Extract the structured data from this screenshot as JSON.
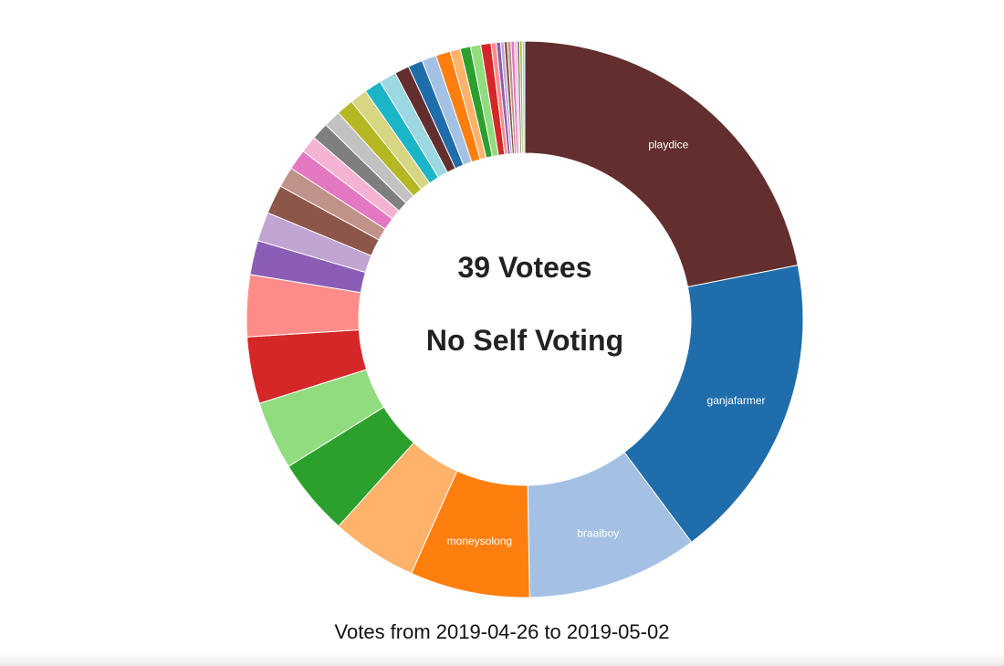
{
  "chart_data": {
    "type": "pie",
    "donut": true,
    "center_text": [
      "39 Votees",
      "No Self Voting"
    ],
    "caption": "Votes from 2019-04-26 to 2019-05-02",
    "slices": [
      {
        "label": "playdice",
        "value": 22.0,
        "color": "#632f2e"
      },
      {
        "label": "ganjafarmer",
        "value": 18.0,
        "color": "#1f6dab"
      },
      {
        "label": "braaiboy",
        "value": 10.0,
        "color": "#a4c1e4"
      },
      {
        "label": "moneysolong",
        "value": 7.0,
        "color": "#ff7f0e"
      },
      {
        "label": "",
        "value": 5.0,
        "color": "#ffb26a"
      },
      {
        "label": "",
        "value": 4.5,
        "color": "#2ca02c"
      },
      {
        "label": "",
        "value": 4.0,
        "color": "#90dc7e"
      },
      {
        "label": "",
        "value": 3.9,
        "color": "#d62728"
      },
      {
        "label": "",
        "value": 3.6,
        "color": "#ff8c88"
      },
      {
        "label": "",
        "value": 2.0,
        "color": "#8b5db7"
      },
      {
        "label": "",
        "value": 1.7,
        "color": "#c0a5d2"
      },
      {
        "label": "",
        "value": 1.7,
        "color": "#8c564b"
      },
      {
        "label": "",
        "value": 1.2,
        "color": "#c19289"
      },
      {
        "label": "",
        "value": 1.2,
        "color": "#e377c2"
      },
      {
        "label": "",
        "value": 1.0,
        "color": "#f5b3d3"
      },
      {
        "label": "",
        "value": 1.0,
        "color": "#7f7f7f"
      },
      {
        "label": "",
        "value": 1.0,
        "color": "#c2c2c2"
      },
      {
        "label": "",
        "value": 1.0,
        "color": "#b5b723"
      },
      {
        "label": "",
        "value": 1.0,
        "color": "#d7d682"
      },
      {
        "label": "",
        "value": 1.0,
        "color": "#1ab5c7"
      },
      {
        "label": "",
        "value": 1.0,
        "color": "#9bd8e2"
      },
      {
        "label": "",
        "value": 0.85,
        "color": "#632f2e"
      },
      {
        "label": "",
        "value": 0.85,
        "color": "#1f6dab"
      },
      {
        "label": "",
        "value": 0.85,
        "color": "#a4c1e4"
      },
      {
        "label": "",
        "value": 0.85,
        "color": "#ff7f0e"
      },
      {
        "label": "",
        "value": 0.6,
        "color": "#ffb26a"
      },
      {
        "label": "",
        "value": 0.6,
        "color": "#2ca02c"
      },
      {
        "label": "",
        "value": 0.6,
        "color": "#90dc7e"
      },
      {
        "label": "",
        "value": 0.6,
        "color": "#d62728"
      },
      {
        "label": "",
        "value": 0.3,
        "color": "#ff8c88"
      },
      {
        "label": "",
        "value": 0.25,
        "color": "#8b5db7"
      },
      {
        "label": "",
        "value": 0.2,
        "color": "#c0a5d2"
      },
      {
        "label": "",
        "value": 0.2,
        "color": "#8c564b"
      },
      {
        "label": "",
        "value": 0.2,
        "color": "#c19289"
      },
      {
        "label": "",
        "value": 0.2,
        "color": "#e377c2"
      },
      {
        "label": "",
        "value": 0.15,
        "color": "#f5b3d3"
      },
      {
        "label": "",
        "value": 0.15,
        "color": "#7f7f7f"
      },
      {
        "label": "",
        "value": 0.15,
        "color": "#b5b723"
      },
      {
        "label": "",
        "value": 0.15,
        "color": "#9bd8e2"
      }
    ]
  }
}
